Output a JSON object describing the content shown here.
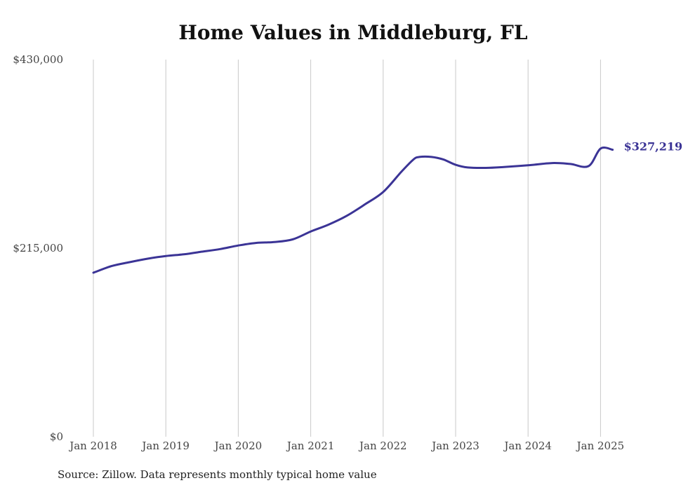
{
  "chart_data": {
    "type": "line",
    "title": "Home Values in Middleburg, FL",
    "xlabel": "",
    "ylabel": "",
    "x_ticks": [
      "Jan 2018",
      "Jan 2019",
      "Jan 2020",
      "Jan 2021",
      "Jan 2022",
      "Jan 2023",
      "Jan 2024",
      "Jan 2025"
    ],
    "y_ticks": [
      "$0",
      "$215,000",
      "$430,000"
    ],
    "y_tick_values": [
      0,
      215000,
      430000
    ],
    "ylim": [
      0,
      430000
    ],
    "xlim": [
      "2018-01",
      "2025-03"
    ],
    "grid": "vertical gridlines at each January",
    "series": [
      {
        "color": "#3b3496",
        "x": [
          "2018-01",
          "2018-04",
          "2018-07",
          "2018-10",
          "2019-01",
          "2019-04",
          "2019-07",
          "2019-10",
          "2020-01",
          "2020-04",
          "2020-07",
          "2020-10",
          "2021-01",
          "2021-04",
          "2021-07",
          "2021-10",
          "2022-01",
          "2022-04",
          "2022-06",
          "2022-07",
          "2022-09",
          "2022-11",
          "2023-01",
          "2023-03",
          "2023-06",
          "2023-09",
          "2024-01",
          "2024-05",
          "2024-08",
          "2024-11",
          "2025-01",
          "2025-03"
        ],
        "values": [
          187000,
          194500,
          199000,
          203000,
          206000,
          208000,
          211000,
          214000,
          218000,
          221000,
          222000,
          225000,
          234000,
          242000,
          252000,
          265000,
          279000,
          302000,
          316000,
          319000,
          319000,
          316000,
          310000,
          307000,
          306500,
          307500,
          309500,
          312000,
          311000,
          308500,
          328500,
          327219
        ]
      }
    ],
    "end_label": "$327,219",
    "source": "Source: Zillow. Data represents monthly typical home value"
  }
}
